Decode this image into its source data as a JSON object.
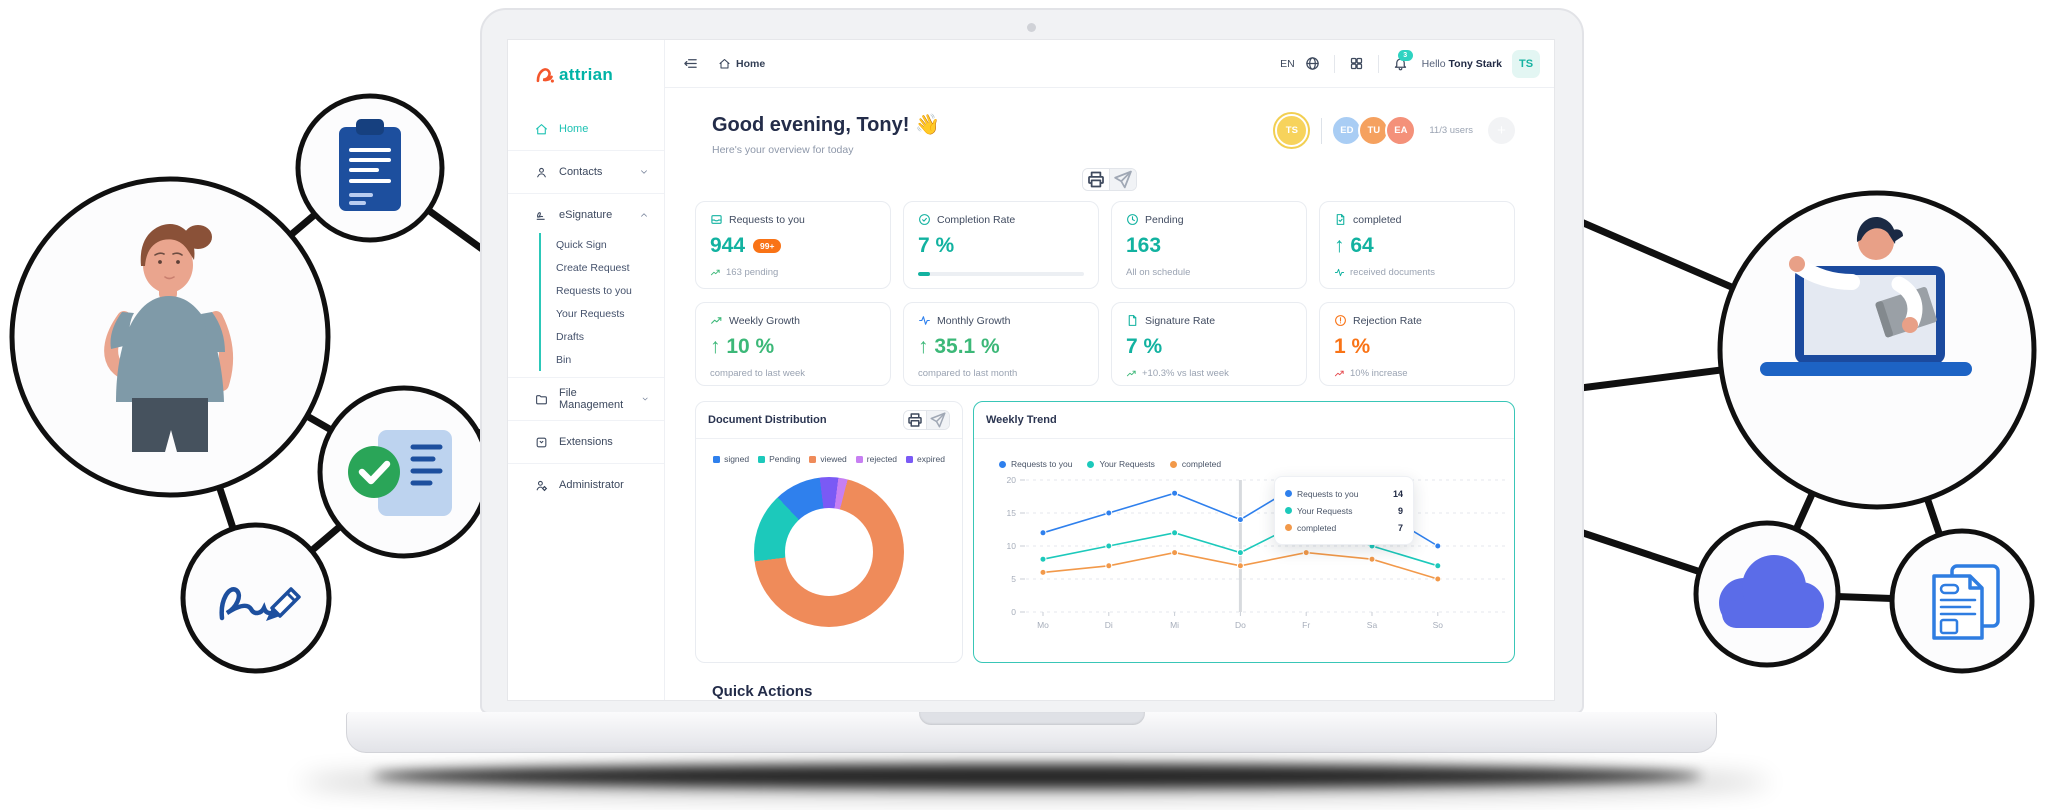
{
  "brand": {
    "name": "attrian",
    "mark_color": "#f4562c",
    "text_color": "#00b3a6"
  },
  "sidebar": {
    "items": [
      {
        "label": "Home",
        "icon": "home"
      },
      {
        "label": "Contacts",
        "icon": "user"
      },
      {
        "label": "eSignature",
        "icon": "signature",
        "children": [
          "Quick Sign",
          "Create Request",
          "Requests to you",
          "Your Requests",
          "Drafts",
          "Bin"
        ]
      },
      {
        "label": "File Management",
        "icon": "folder"
      },
      {
        "label": "Extensions",
        "icon": "extension"
      },
      {
        "label": "Administrator",
        "icon": "admin"
      }
    ]
  },
  "topbar": {
    "breadcrumb": "Home",
    "language": "EN",
    "notification_count": "3",
    "greeting_prefix": "Hello",
    "user_name": "Tony Stark",
    "user_initials": "TS"
  },
  "header": {
    "greeting": "Good evening, Tony! 👋",
    "subtitle": "Here's your overview for today",
    "users_label": "11/3 users",
    "plus_label": "+",
    "avatars": [
      {
        "initials": "TS",
        "color": "#f7d35c"
      },
      {
        "initials": "ED",
        "color": "#a9cdf4"
      },
      {
        "initials": "TU",
        "color": "#f5a15f"
      },
      {
        "initials": "EA",
        "color": "#f4917a"
      }
    ]
  },
  "stat_cards_row1": [
    {
      "label": "Requests to you",
      "icon": "inbox",
      "icon_color": "#12b2a0",
      "value": "944",
      "value_color": "#12b2a0",
      "badge": "99+",
      "footer": "163 pending",
      "footer_icon": "trend-up",
      "footer_icon_color": "#3cb878"
    },
    {
      "label": "Completion Rate",
      "icon": "check-circle",
      "icon_color": "#12b2a0",
      "value": "7 %",
      "value_color": "#12b2a0",
      "progress_percent": 7
    },
    {
      "label": "Pending",
      "icon": "clock",
      "icon_color": "#12b2a0",
      "value": "163",
      "value_color": "#12b2a0",
      "footer": "All on schedule"
    },
    {
      "label": "completed",
      "icon": "doc-check",
      "icon_color": "#12b2a0",
      "value": "↑ 64",
      "value_color": "#12b2a0",
      "footer": "received documents",
      "footer_icon": "activity",
      "footer_icon_color": "#12b2a0"
    }
  ],
  "stat_cards_row2": [
    {
      "label": "Weekly Growth",
      "icon": "trend-up",
      "icon_color": "#3cb878",
      "value": "↑ 10 %",
      "value_color": "#3cb878",
      "footer": "compared to last week"
    },
    {
      "label": "Monthly Growth",
      "icon": "activity",
      "icon_color": "#2f80ed",
      "value": "↑ 35.1 %",
      "value_color": "#3cb878",
      "footer": "compared to last month"
    },
    {
      "label": "Signature Rate",
      "icon": "file",
      "icon_color": "#12b2a0",
      "value": "7 %",
      "value_color": "#12b2a0",
      "footer": "+10.3% vs last week",
      "footer_icon": "trend-up",
      "footer_icon_color": "#3cb878"
    },
    {
      "label": "Rejection Rate",
      "icon": "alert-circle",
      "icon_color": "#f97316",
      "value": "1 %",
      "value_color": "#f97316",
      "footer": "10% increase",
      "footer_icon": "trend-up",
      "footer_icon_color": "#e5484d"
    }
  ],
  "distribution_card": {
    "title": "Document Distribution"
  },
  "trend_card": {
    "title": "Weekly Trend"
  },
  "quick_actions_title": "Quick Actions",
  "chart_data": [
    {
      "type": "pie",
      "donut": true,
      "title": "Document Distribution",
      "labels": [
        "signed",
        "Pending",
        "viewed",
        "rejected",
        "expired"
      ],
      "values": [
        10,
        15,
        69,
        2,
        4
      ],
      "colors": [
        "#2f80ed",
        "#1cc9bb",
        "#ef8b5a",
        "#c77ff2",
        "#7a5af5"
      ],
      "legend_position": "top"
    },
    {
      "type": "line",
      "title": "Weekly Trend",
      "x": [
        "Mo",
        "Di",
        "Mi",
        "Do",
        "Fr",
        "Sa",
        "So"
      ],
      "ylim": [
        0,
        20
      ],
      "yticks": [
        0,
        5,
        10,
        15,
        20
      ],
      "grid": "dashed",
      "series": [
        {
          "name": "Requests to you",
          "color": "#2f80ed",
          "values": [
            12,
            15,
            18,
            14,
            20,
            16,
            10
          ]
        },
        {
          "name": "Your Requests",
          "color": "#1cc9bb",
          "values": [
            8,
            10,
            12,
            9,
            14,
            10,
            7
          ]
        },
        {
          "name": "completed",
          "color": "#f2994a",
          "values": [
            6,
            7,
            9,
            7,
            9,
            8,
            5
          ]
        }
      ],
      "tooltip": {
        "x": "Do",
        "values": [
          14,
          9,
          7
        ]
      },
      "legend_position": "top"
    }
  ]
}
